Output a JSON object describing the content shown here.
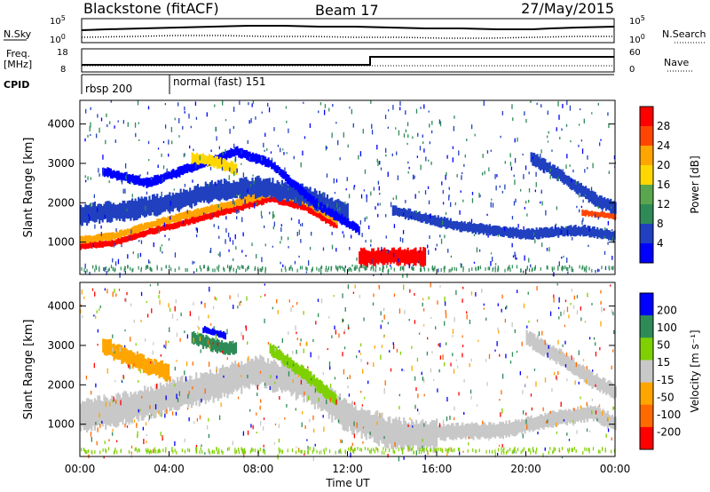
{
  "header": {
    "station": "Blackstone (fitACF)",
    "beam": "Beam 17",
    "date": "27/May/2015"
  },
  "summary": {
    "nsky_label": "N.Sky",
    "nsearch_label": "N.Search",
    "freq_label_1": "Freq.",
    "freq_label_2": "[MHz]",
    "nave_label": "Nave",
    "cpid_label": "CPID",
    "nsky_ticks": [
      "10^5",
      "10^0"
    ],
    "nsearch_ticks": [
      "10^5",
      "10^0"
    ],
    "freq_ticks": [
      "18",
      "8"
    ],
    "nave_ticks": [
      "60",
      "0"
    ],
    "cpid_segments": [
      {
        "label": "rbsp 200",
        "start_hour": 0
      },
      {
        "label": "normal (fast) 151",
        "start_hour": 4
      }
    ]
  },
  "colors": {
    "power_scale": [
      "#0000ff",
      "#2040c0",
      "#2e8b57",
      "#5aa64e",
      "#ffd700",
      "#ffa500",
      "#ff4500",
      "#ff0000"
    ],
    "velocity_scale": [
      "#ff0000",
      "#ff6a00",
      "#ffa500",
      "#c8c8c8",
      "#7fd000",
      "#2e8b57",
      "#0000ff"
    ]
  },
  "chart_data": [
    {
      "type": "heatmap",
      "name": "power",
      "ylabel": "Slant Range [km]",
      "colorbar_label": "Power [dB]",
      "colorbar_ticks": [
        "28",
        "24",
        "20",
        "16",
        "12",
        "8",
        "4"
      ],
      "ylim": [
        180,
        4600
      ],
      "yticks": [
        "1000",
        "2000",
        "3000",
        "4000"
      ],
      "x_hours": [
        0,
        24
      ],
      "bands": [
        {
          "points": [
            [
              0.0,
              900
            ],
            [
              1.5,
              980
            ],
            [
              3.0,
              1250
            ],
            [
              5.0,
              1550
            ],
            [
              7.0,
              1850
            ],
            [
              8.5,
              2100
            ],
            [
              10.0,
              1900
            ],
            [
              11.5,
              1400
            ]
          ],
          "half_width": 80,
          "level": 28
        },
        {
          "points": [
            [
              0.0,
              1050
            ],
            [
              1.5,
              1150
            ],
            [
              3.0,
              1420
            ],
            [
              5.0,
              1720
            ],
            [
              7.0,
              2000
            ],
            [
              8.5,
              2250
            ],
            [
              10.0,
              2050
            ],
            [
              11.5,
              1550
            ]
          ],
          "half_width": 90,
          "level": 20
        },
        {
          "points": [
            [
              0.0,
              1700
            ],
            [
              2.0,
              1800
            ],
            [
              4.0,
              2000
            ],
            [
              6.0,
              2300
            ],
            [
              8.0,
              2400
            ],
            [
              10.0,
              2200
            ],
            [
              12.0,
              1700
            ]
          ],
          "half_width": 230,
          "level": 8
        },
        {
          "points": [
            [
              1.0,
              2800
            ],
            [
              3.0,
              2500
            ],
            [
              5.0,
              2900
            ],
            [
              7.0,
              3300
            ],
            [
              8.5,
              3000
            ],
            [
              10.5,
              2000
            ],
            [
              12.5,
              1300
            ]
          ],
          "half_width": 110,
          "level": 4
        },
        {
          "points": [
            [
              5.0,
              3150
            ],
            [
              6.0,
              3050
            ],
            [
              7.0,
              2850
            ]
          ],
          "half_width": 130,
          "level": 16
        },
        {
          "points": [
            [
              12.5,
              600
            ],
            [
              14.0,
              650
            ],
            [
              15.5,
              620
            ]
          ],
          "half_width": 200,
          "level": 28
        },
        {
          "points": [
            [
              14.0,
              1800
            ],
            [
              17.0,
              1400
            ],
            [
              20.0,
              1200
            ],
            [
              22.5,
              1300
            ],
            [
              24.0,
              1150
            ]
          ],
          "half_width": 120,
          "level": 8
        },
        {
          "points": [
            [
              20.2,
              3150
            ],
            [
              21.5,
              2700
            ],
            [
              23.0,
              2100
            ],
            [
              24.0,
              1850
            ]
          ],
          "half_width": 150,
          "level": 8
        },
        {
          "points": [
            [
              22.5,
              1750
            ],
            [
              24.0,
              1650
            ]
          ],
          "half_width": 70,
          "level": 24
        }
      ]
    },
    {
      "type": "heatmap",
      "name": "velocity",
      "ylabel": "Slant Range [km]",
      "xlabel": "Time UT",
      "colorbar_label": "Velocity [m s⁻¹]",
      "colorbar_ticks": [
        "200",
        "100",
        "50",
        "15",
        "-15",
        "-50",
        "-100",
        "-200"
      ],
      "ylim": [
        180,
        4600
      ],
      "yticks": [
        "1000",
        "2000",
        "3000",
        "4000"
      ],
      "xticks": [
        "00:00",
        "04:00",
        "08:00",
        "12:00",
        "16:00",
        "20:00",
        "00:00"
      ],
      "x_hours": [
        0,
        24
      ],
      "bands": [
        {
          "points": [
            [
              0.0,
              1200
            ],
            [
              2.0,
              1400
            ],
            [
              4.0,
              1700
            ],
            [
              6.0,
              2000
            ],
            [
              8.0,
              2350
            ],
            [
              10.0,
              2000
            ],
            [
              12.0,
              1200
            ],
            [
              14.0,
              750
            ],
            [
              16.0,
              700
            ]
          ],
          "half_width": 350,
          "level": 0
        },
        {
          "points": [
            [
              16.0,
              800
            ],
            [
              19.0,
              850
            ],
            [
              21.0,
              1100
            ],
            [
              23.0,
              1300
            ],
            [
              24.0,
              1000
            ]
          ],
          "half_width": 180,
          "level": 0
        },
        {
          "points": [
            [
              20.0,
              3200
            ],
            [
              21.5,
              2700
            ],
            [
              23.0,
              2100
            ],
            [
              24.0,
              1800
            ]
          ],
          "half_width": 180,
          "level": 0
        },
        {
          "points": [
            [
              1.0,
              3000
            ],
            [
              2.5,
              2600
            ],
            [
              4.0,
              2300
            ]
          ],
          "half_width": 200,
          "level": -60
        },
        {
          "points": [
            [
              5.0,
              3200
            ],
            [
              6.0,
              3000
            ],
            [
              7.0,
              2900
            ]
          ],
          "half_width": 150,
          "level": 80
        },
        {
          "points": [
            [
              5.5,
              3400
            ],
            [
              6.5,
              3250
            ]
          ],
          "half_width": 80,
          "level": 200
        },
        {
          "points": [
            [
              8.5,
              2900
            ],
            [
              10.0,
              2300
            ],
            [
              11.5,
              1600
            ]
          ],
          "half_width": 150,
          "level": 40
        }
      ]
    }
  ]
}
